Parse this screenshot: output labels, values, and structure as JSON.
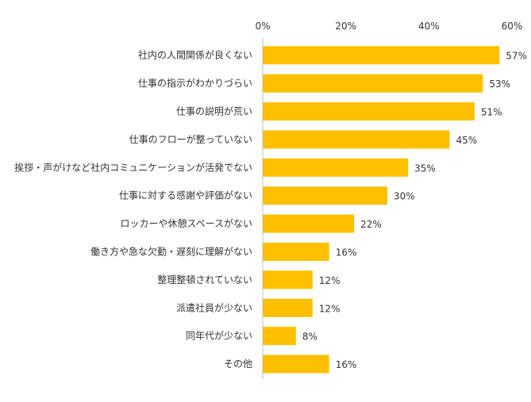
{
  "chart_data": {
    "type": "bar",
    "orientation": "horizontal",
    "title": "",
    "xlabel": "",
    "ylabel": "",
    "xlim": [
      0,
      60
    ],
    "ticks": [
      "0%",
      "20%",
      "40%",
      "60%"
    ],
    "tick_values": [
      0,
      20,
      40,
      60
    ],
    "tick_position": "top",
    "grid": false,
    "legend": "none",
    "bar_color": "#FFC000",
    "categories": [
      "社内の人間関係が良くない",
      "仕事の指示がわかりづらい",
      "仕事の説明が荒い",
      "仕事のフローが整っていない",
      "挨拶・声がけなど社内コミュニケーションが活発でない",
      "仕事に対する感謝や評価がない",
      "ロッカーや休憩スペースがない",
      "働き方や急な欠勤・遅刻に理解がない",
      "整理整頓されていない",
      "派遣社員が少ない",
      "同年代が少ない",
      "その他"
    ],
    "values": [
      57,
      53,
      51,
      45,
      35,
      30,
      22,
      16,
      12,
      12,
      8,
      16
    ],
    "value_labels": [
      "57%",
      "53%",
      "51%",
      "45%",
      "35%",
      "30%",
      "22%",
      "16%",
      "12%",
      "12%",
      "8%",
      "16%"
    ]
  }
}
